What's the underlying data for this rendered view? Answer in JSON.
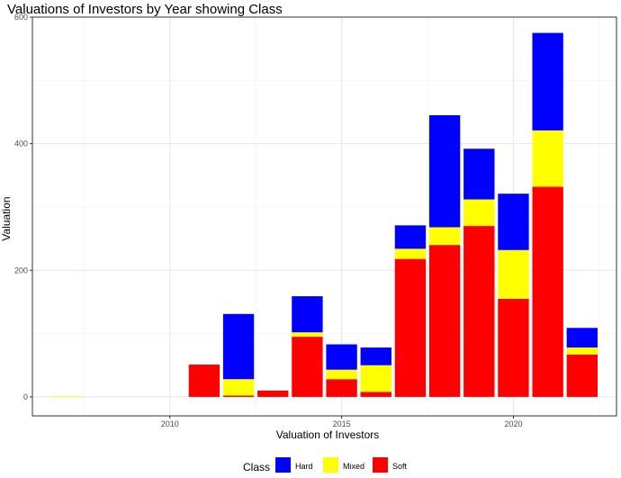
{
  "chart_data": {
    "type": "bar",
    "stacked": true,
    "title": "Valuations of Investors by Year showing Class",
    "xlabel": "Valuation of Investors",
    "ylabel": "Valuation",
    "xlim": [
      2006,
      2023
    ],
    "ylim": [
      -30,
      600
    ],
    "x_ticks": [
      2010,
      2015,
      2020
    ],
    "y_ticks": [
      0,
      200,
      400,
      600
    ],
    "x_tick_labels": [
      "2010",
      "2015",
      "2020"
    ],
    "y_tick_labels": [
      "0",
      "200",
      "400",
      "600"
    ],
    "grid": true,
    "legend": {
      "title": "Class",
      "position": "bottom",
      "entries": [
        {
          "name": "Hard",
          "color": "#0000FF"
        },
        {
          "name": "Mixed",
          "color": "#FFFF00"
        },
        {
          "name": "Soft",
          "color": "#FF0000"
        }
      ]
    },
    "x": [
      2007,
      2011,
      2012,
      2013,
      2014,
      2015,
      2016,
      2017,
      2018,
      2019,
      2020,
      2021,
      2022
    ],
    "series": [
      {
        "name": "Soft",
        "color": "#FF0000",
        "values": [
          0,
          51,
          2,
          10,
          95,
          28,
          8,
          218,
          240,
          270,
          155,
          332,
          67
        ]
      },
      {
        "name": "Mixed",
        "color": "#FFFF00",
        "values": [
          1,
          0,
          26,
          0,
          7,
          15,
          42,
          16,
          28,
          42,
          77,
          89,
          11
        ]
      },
      {
        "name": "Hard",
        "color": "#0000FF",
        "values": [
          0,
          0,
          103,
          0,
          57,
          40,
          28,
          37,
          177,
          80,
          89,
          154,
          31
        ]
      }
    ]
  }
}
